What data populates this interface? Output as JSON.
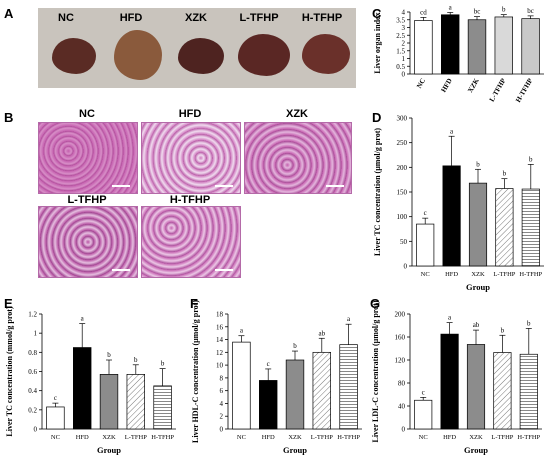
{
  "panels": {
    "A": "A",
    "B": "B",
    "C": "C",
    "D": "D",
    "E": "E",
    "F": "F",
    "G": "G"
  },
  "panel_a": {
    "labels": [
      "NC",
      "HFD",
      "XZK",
      "L-TFHP",
      "H-TFHP"
    ],
    "liver_colors": [
      "#5a2b24",
      "#8a5a3c",
      "#4e2320",
      "#5a2724",
      "#6a302a"
    ]
  },
  "panel_b": {
    "labels": [
      "NC",
      "HFD",
      "XZK",
      "L-TFHP",
      "H-TFHP"
    ],
    "tissue_color": "#c45fae"
  },
  "colors": {
    "NC": "#ffffff",
    "HFD": "#000000",
    "XZK": "#8c8c8c",
    "L-TFHP": "hatch-diagonal",
    "H-TFHP": "hatch-horizontal"
  },
  "chart_data": [
    {
      "id": "C",
      "type": "bar",
      "categories": [
        "NC",
        "HFD",
        "XZK",
        "L-TFHP",
        "H-TFHP"
      ],
      "values": [
        3.45,
        3.82,
        3.5,
        3.68,
        3.57
      ],
      "errors": [
        0.2,
        0.15,
        0.2,
        0.15,
        0.18
      ],
      "letters": [
        "cd",
        "a",
        "bc",
        "b",
        "bc"
      ],
      "ylabel": "Liver organ index",
      "xlabel": "",
      "ylim": [
        0,
        4.0
      ],
      "yticks": [
        0,
        0.5,
        1.0,
        1.5,
        2.0,
        2.5,
        3.0,
        3.5,
        4.0
      ],
      "fills": [
        "#ffffff",
        "#000000",
        "#8c8c8c",
        "#d9d9d9",
        "#c9c9c9"
      ]
    },
    {
      "id": "D",
      "type": "bar",
      "categories": [
        "NC",
        "HFD",
        "XZK",
        "L-TFHP",
        "H-TFHP"
      ],
      "values": [
        85,
        203,
        168,
        157,
        156
      ],
      "errors": [
        12,
        60,
        28,
        20,
        50
      ],
      "letters": [
        "c",
        "a",
        "b",
        "b",
        "b"
      ],
      "ylabel": "Liver TC concentration (μmol/g prot)",
      "xlabel": "Group",
      "ylim": [
        0,
        300
      ],
      "yticks": [
        0,
        50,
        100,
        150,
        200,
        250,
        300
      ]
    },
    {
      "id": "E",
      "type": "bar",
      "categories": [
        "NC",
        "HFD",
        "XZK",
        "L-TFHP",
        "H-TFHP"
      ],
      "values": [
        0.23,
        0.85,
        0.57,
        0.57,
        0.45
      ],
      "errors": [
        0.04,
        0.25,
        0.15,
        0.1,
        0.18
      ],
      "letters": [
        "c",
        "a",
        "b",
        "b",
        "b"
      ],
      "ylabel": "Liver TC concentration (mmol/g prot)",
      "xlabel": "Group",
      "ylim": [
        0,
        1.2
      ],
      "yticks": [
        0,
        0.2,
        0.4,
        0.6,
        0.8,
        1.0,
        1.2
      ]
    },
    {
      "id": "F",
      "type": "bar",
      "categories": [
        "NC",
        "HFD",
        "XZK",
        "L-TFHP",
        "H-TFHP"
      ],
      "values": [
        13.6,
        7.6,
        10.8,
        12.0,
        13.2
      ],
      "errors": [
        1.0,
        1.8,
        1.4,
        2.2,
        3.2
      ],
      "letters": [
        "a",
        "c",
        "b",
        "ab",
        "a"
      ],
      "ylabel": "Liver HDL-C concentration (μmol/g prot)",
      "xlabel": "Group",
      "ylim": [
        0,
        18
      ],
      "yticks": [
        0,
        2,
        4,
        6,
        8,
        10,
        12,
        14,
        16,
        18
      ]
    },
    {
      "id": "G",
      "type": "bar",
      "categories": [
        "NC",
        "HFD",
        "XZK",
        "L-TFHP",
        "H-TFHP"
      ],
      "values": [
        50,
        165,
        147,
        133,
        130
      ],
      "errors": [
        5,
        20,
        25,
        30,
        45
      ],
      "letters": [
        "c",
        "a",
        "ab",
        "b",
        "b"
      ],
      "ylabel": "Liver LDL-C concentration (μmol/g prot)",
      "xlabel": "Group",
      "ylim": [
        0,
        200
      ],
      "yticks": [
        0,
        40,
        80,
        120,
        160,
        200
      ]
    }
  ]
}
